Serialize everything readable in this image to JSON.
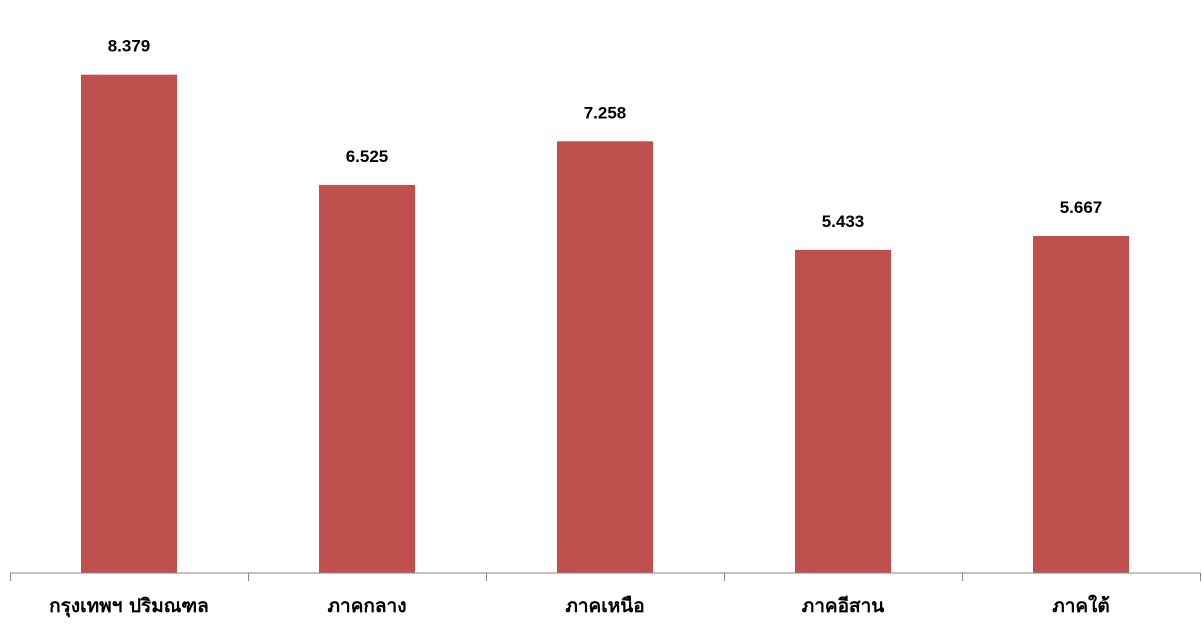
{
  "chart_data": {
    "type": "bar",
    "categories": [
      "กรุงเทพฯ ปริมณฑล",
      "ภาคกลาง",
      "ภาคเหนือ",
      "ภาคอีสาน",
      "ภาคใต้"
    ],
    "values": [
      8.379,
      6.525,
      7.258,
      5.433,
      5.667
    ],
    "value_labels": [
      "8.379",
      "6.525",
      "7.258",
      "5.433",
      "5.667"
    ],
    "ylim": [
      0,
      9.5
    ],
    "grid": false,
    "legend": "none",
    "bar_color": "#c0504d",
    "axis_color": "#868686"
  }
}
